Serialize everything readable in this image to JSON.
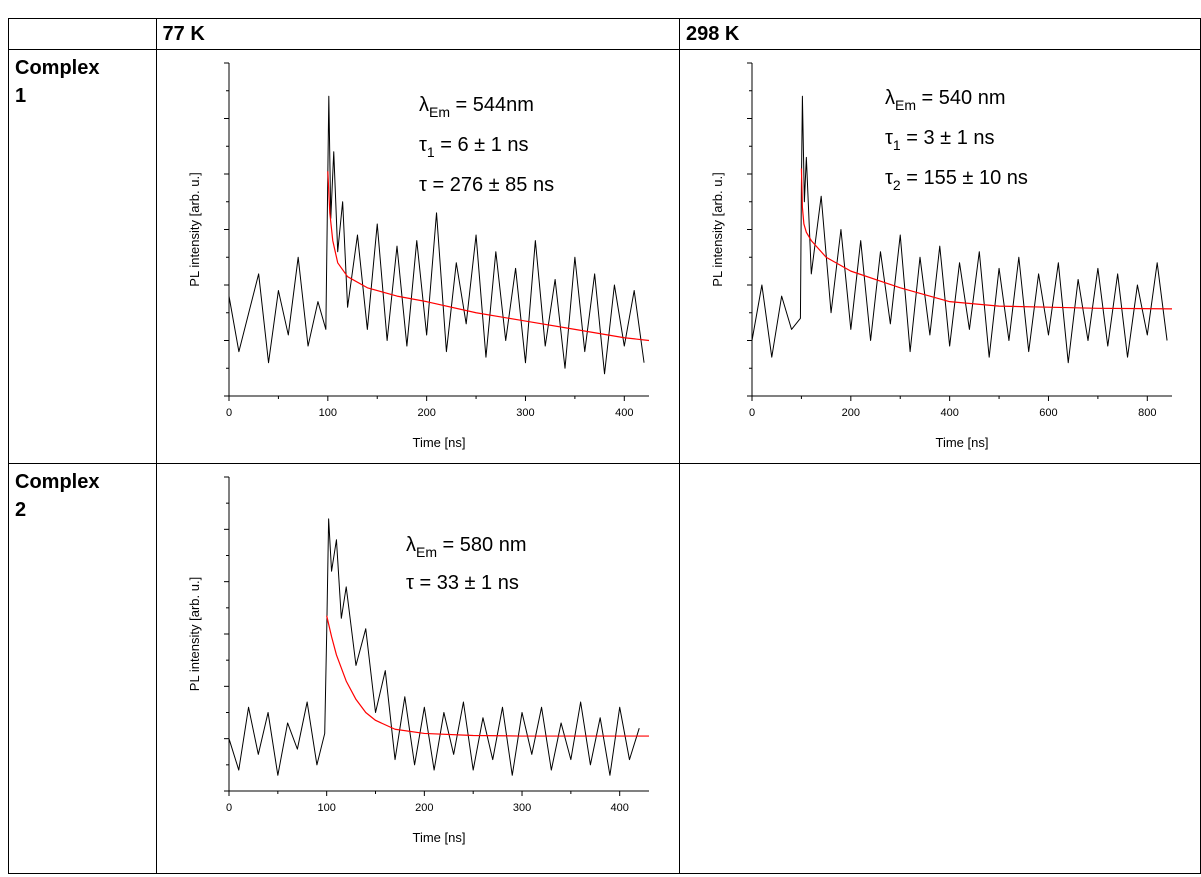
{
  "table": {
    "headers": [
      "77 K",
      "298 K"
    ],
    "row_labels": [
      "Complex 1",
      "Complex 2"
    ]
  },
  "chart_data": [
    {
      "type": "line",
      "xlabel": "Time [ns]",
      "ylabel": "PL intensity [arb. u.]",
      "xlim": [
        0,
        425
      ],
      "xticks": [
        0,
        100,
        200,
        300,
        400
      ],
      "ylim": [
        0,
        6
      ],
      "annotations": [
        {
          "main": "λ",
          "sub": "Em",
          "rest": " = 544nm"
        },
        {
          "main": "τ",
          "sub": "1",
          "rest": " = 6 ± 1 ns"
        },
        {
          "main": "τ = 276 ± 85 ns"
        }
      ],
      "series": [
        {
          "color": "#000000",
          "x": [
            0,
            10,
            20,
            30,
            40,
            50,
            60,
            70,
            80,
            90,
            98,
            100,
            101,
            103,
            106,
            110,
            115,
            120,
            130,
            140,
            150,
            160,
            170,
            180,
            190,
            200,
            210,
            220,
            230,
            240,
            250,
            260,
            270,
            280,
            290,
            300,
            310,
            320,
            330,
            340,
            350,
            360,
            370,
            380,
            390,
            400,
            410,
            420
          ],
          "values": [
            1.8,
            0.8,
            1.5,
            2.2,
            0.6,
            1.9,
            1.1,
            2.5,
            0.9,
            1.7,
            1.2,
            4.0,
            5.4,
            3.2,
            4.4,
            2.6,
            3.5,
            1.6,
            2.9,
            1.2,
            3.1,
            1.0,
            2.7,
            0.9,
            2.8,
            1.1,
            3.3,
            0.8,
            2.4,
            1.3,
            2.9,
            0.7,
            2.6,
            1.0,
            2.3,
            0.6,
            2.8,
            0.9,
            2.1,
            0.5,
            2.5,
            0.8,
            2.2,
            0.4,
            2.0,
            0.9,
            1.9,
            0.6
          ]
        },
        {
          "color": "#ff0000",
          "x": [
            100,
            102,
            105,
            110,
            120,
            140,
            170,
            200,
            250,
            300,
            350,
            400,
            425
          ],
          "values": [
            4.05,
            3.3,
            2.8,
            2.4,
            2.15,
            1.95,
            1.8,
            1.7,
            1.5,
            1.35,
            1.2,
            1.05,
            1.0
          ]
        }
      ]
    },
    {
      "type": "line",
      "xlabel": "Time [ns]",
      "ylabel": "PL intensity [arb. u.]",
      "xlim": [
        0,
        850
      ],
      "xticks": [
        0,
        200,
        400,
        600,
        800
      ],
      "ylim": [
        0,
        6
      ],
      "annotations": [
        {
          "main": "λ",
          "sub": "Em",
          "rest": " = 540 nm"
        },
        {
          "main": "τ",
          "sub": "1",
          "rest": " = 3 ± 1 ns"
        },
        {
          "main": "τ",
          "sub": "2",
          "rest": " = 155 ± 10 ns"
        }
      ],
      "series": [
        {
          "color": "#000000",
          "x": [
            0,
            20,
            40,
            60,
            80,
            98,
            100,
            102,
            106,
            110,
            120,
            140,
            160,
            180,
            200,
            220,
            240,
            260,
            280,
            300,
            320,
            340,
            360,
            380,
            400,
            420,
            440,
            460,
            480,
            500,
            520,
            540,
            560,
            580,
            600,
            620,
            640,
            660,
            680,
            700,
            720,
            740,
            760,
            780,
            800,
            820,
            840
          ],
          "values": [
            1.0,
            2.0,
            0.7,
            1.8,
            1.2,
            1.4,
            3.8,
            5.4,
            3.5,
            4.3,
            2.2,
            3.6,
            1.5,
            3.0,
            1.2,
            2.8,
            1.0,
            2.6,
            1.3,
            2.9,
            0.8,
            2.5,
            1.1,
            2.7,
            0.9,
            2.4,
            1.2,
            2.6,
            0.7,
            2.3,
            1.0,
            2.5,
            0.8,
            2.2,
            1.1,
            2.4,
            0.6,
            2.1,
            1.0,
            2.3,
            0.9,
            2.2,
            0.7,
            2.0,
            1.1,
            2.4,
            1.0
          ]
        },
        {
          "color": "#ff0000",
          "x": [
            100,
            102,
            105,
            110,
            120,
            150,
            200,
            300,
            400,
            500,
            600,
            700,
            850
          ],
          "values": [
            4.1,
            3.4,
            3.1,
            2.95,
            2.8,
            2.5,
            2.25,
            1.95,
            1.7,
            1.62,
            1.6,
            1.58,
            1.57
          ]
        }
      ]
    },
    {
      "type": "line",
      "xlabel": "Time [ns]",
      "ylabel": "PL intensity [arb. u.]",
      "xlim": [
        0,
        430
      ],
      "xticks": [
        0,
        100,
        200,
        300,
        400
      ],
      "ylim": [
        0,
        6
      ],
      "annotations": [
        {
          "main": "λ",
          "sub": "Em",
          "rest": " = 580 nm"
        },
        {
          "main": "τ = 33 ± 1 ns"
        }
      ],
      "series": [
        {
          "color": "#000000",
          "x": [
            0,
            10,
            20,
            30,
            40,
            50,
            60,
            70,
            80,
            90,
            98,
            100,
            102,
            105,
            110,
            115,
            120,
            130,
            140,
            150,
            160,
            170,
            180,
            190,
            200,
            210,
            220,
            230,
            240,
            250,
            260,
            270,
            280,
            290,
            300,
            310,
            320,
            330,
            340,
            350,
            360,
            370,
            380,
            390,
            400,
            410,
            420
          ],
          "values": [
            1.0,
            0.4,
            1.6,
            0.7,
            1.5,
            0.3,
            1.3,
            0.8,
            1.7,
            0.5,
            1.1,
            3.0,
            5.2,
            4.2,
            4.8,
            3.3,
            3.9,
            2.4,
            3.1,
            1.5,
            2.3,
            0.6,
            1.8,
            0.5,
            1.6,
            0.4,
            1.5,
            0.7,
            1.7,
            0.4,
            1.4,
            0.6,
            1.6,
            0.3,
            1.5,
            0.7,
            1.6,
            0.4,
            1.3,
            0.6,
            1.7,
            0.5,
            1.4,
            0.3,
            1.6,
            0.6,
            1.2
          ]
        },
        {
          "color": "#ff0000",
          "x": [
            100,
            105,
            110,
            120,
            130,
            140,
            150,
            170,
            200,
            250,
            300,
            430
          ],
          "values": [
            3.35,
            2.95,
            2.6,
            2.1,
            1.75,
            1.5,
            1.35,
            1.18,
            1.1,
            1.06,
            1.05,
            1.05
          ]
        }
      ]
    }
  ]
}
